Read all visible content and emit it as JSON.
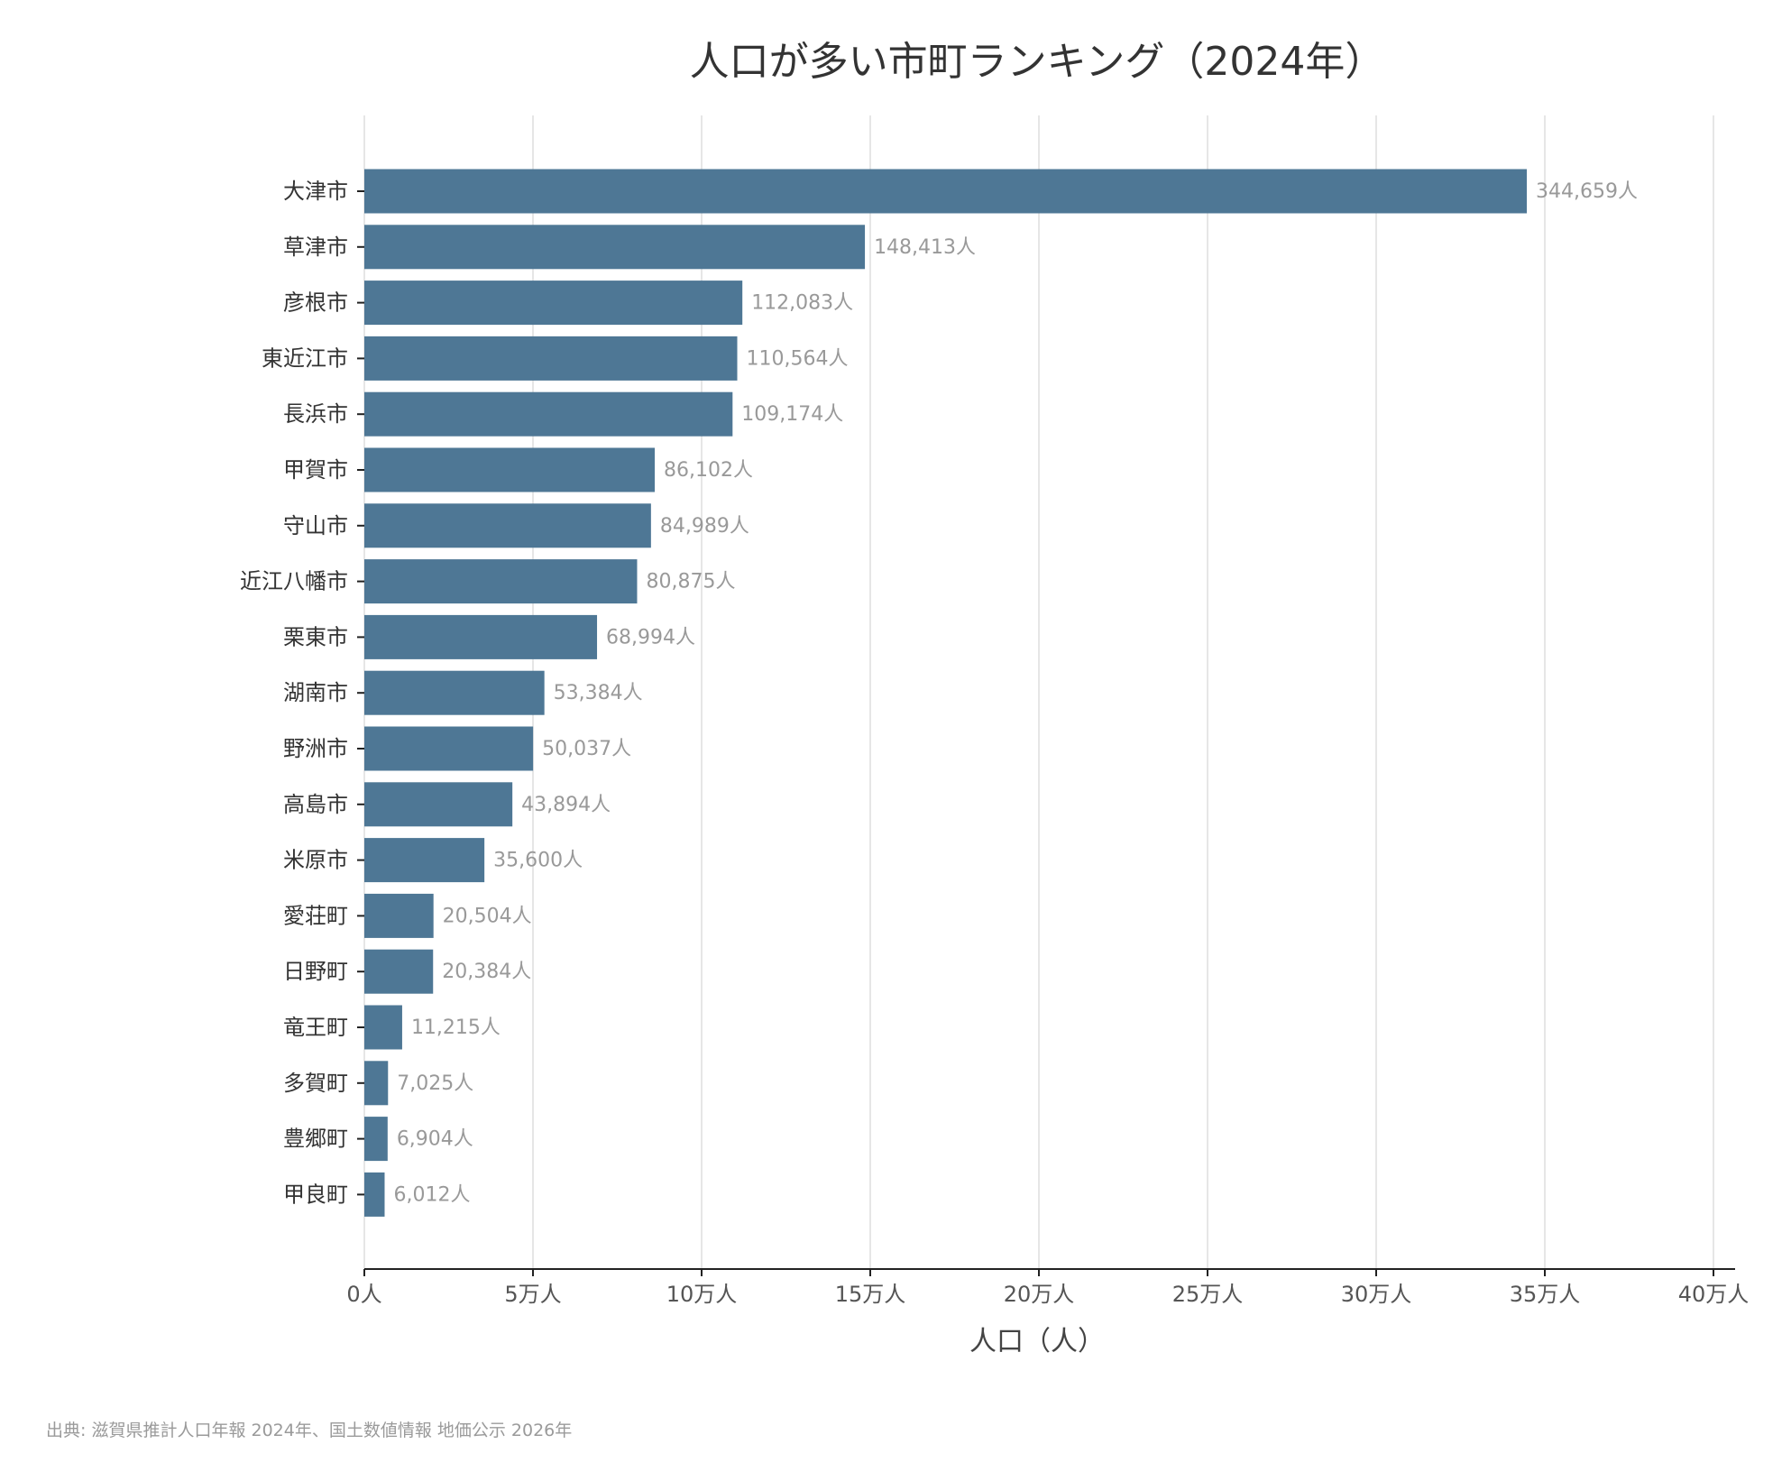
{
  "chart_data": {
    "type": "bar",
    "orientation": "horizontal",
    "title": "人口が多い市町ランキング（2024年）",
    "xlabel": "人口（人）",
    "ylabel": "",
    "xlim": [
      0,
      400000
    ],
    "x_ticks": [
      0,
      50000,
      100000,
      150000,
      200000,
      250000,
      300000,
      350000,
      400000
    ],
    "x_tick_labels": [
      "0人",
      "5万人",
      "10万人",
      "15万人",
      "20万人",
      "25万人",
      "30万人",
      "35万人",
      "40万人"
    ],
    "grid": true,
    "color": "#4e7795",
    "categories": [
      "大津市",
      "草津市",
      "彦根市",
      "東近江市",
      "長浜市",
      "甲賀市",
      "守山市",
      "近江八幡市",
      "栗東市",
      "湖南市",
      "野洲市",
      "高島市",
      "米原市",
      "愛荘町",
      "日野町",
      "竜王町",
      "多賀町",
      "豊郷町",
      "甲良町"
    ],
    "values": [
      344659,
      148413,
      112083,
      110564,
      109174,
      86102,
      84989,
      80875,
      68994,
      53384,
      50037,
      43894,
      35600,
      20504,
      20384,
      11215,
      7025,
      6904,
      6012
    ],
    "value_labels": [
      "344,659人",
      "148,413人",
      "112,083人",
      "110,564人",
      "109,174人",
      "86,102人",
      "84,989人",
      "80,875人",
      "68,994人",
      "53,384人",
      "50,037人",
      "43,894人",
      "35,600人",
      "20,504人",
      "20,384人",
      "11,215人",
      "7,025人",
      "6,904人",
      "6,012人"
    ],
    "source": "出典: 滋賀県推計人口年報 2024年、国土数値情報 地価公示 2026年"
  }
}
